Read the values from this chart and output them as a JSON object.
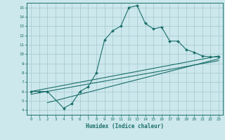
{
  "title": "",
  "xlabel": "Humidex (Indice chaleur)",
  "bg_color": "#cce8ec",
  "grid_color": "#aaccd4",
  "line_color": "#1a6e6a",
  "xlim": [
    -0.5,
    23.5
  ],
  "ylim": [
    3.5,
    15.5
  ],
  "xticks": [
    0,
    1,
    2,
    3,
    4,
    5,
    6,
    7,
    8,
    9,
    10,
    11,
    12,
    13,
    14,
    15,
    16,
    17,
    18,
    19,
    20,
    21,
    22,
    23
  ],
  "yticks": [
    4,
    5,
    6,
    7,
    8,
    9,
    10,
    11,
    12,
    13,
    14,
    15
  ],
  "main_series": {
    "x": [
      0,
      1,
      2,
      4,
      5,
      6,
      7,
      8,
      9,
      10,
      11,
      12,
      13,
      14,
      15,
      16,
      17,
      18,
      19,
      20,
      21,
      22,
      23
    ],
    "y": [
      6,
      6,
      6,
      4.2,
      4.7,
      6.0,
      6.5,
      8.0,
      11.5,
      12.5,
      13.0,
      15.0,
      15.2,
      13.3,
      12.7,
      12.9,
      11.4,
      11.4,
      10.5,
      10.2,
      9.8,
      9.7,
      9.7
    ]
  },
  "line_series": [
    {
      "x": [
        0,
        23
      ],
      "y": [
        6.0,
        9.8
      ]
    },
    {
      "x": [
        0,
        23
      ],
      "y": [
        5.7,
        9.3
      ]
    },
    {
      "x": [
        2,
        23
      ],
      "y": [
        4.8,
        9.5
      ]
    }
  ]
}
